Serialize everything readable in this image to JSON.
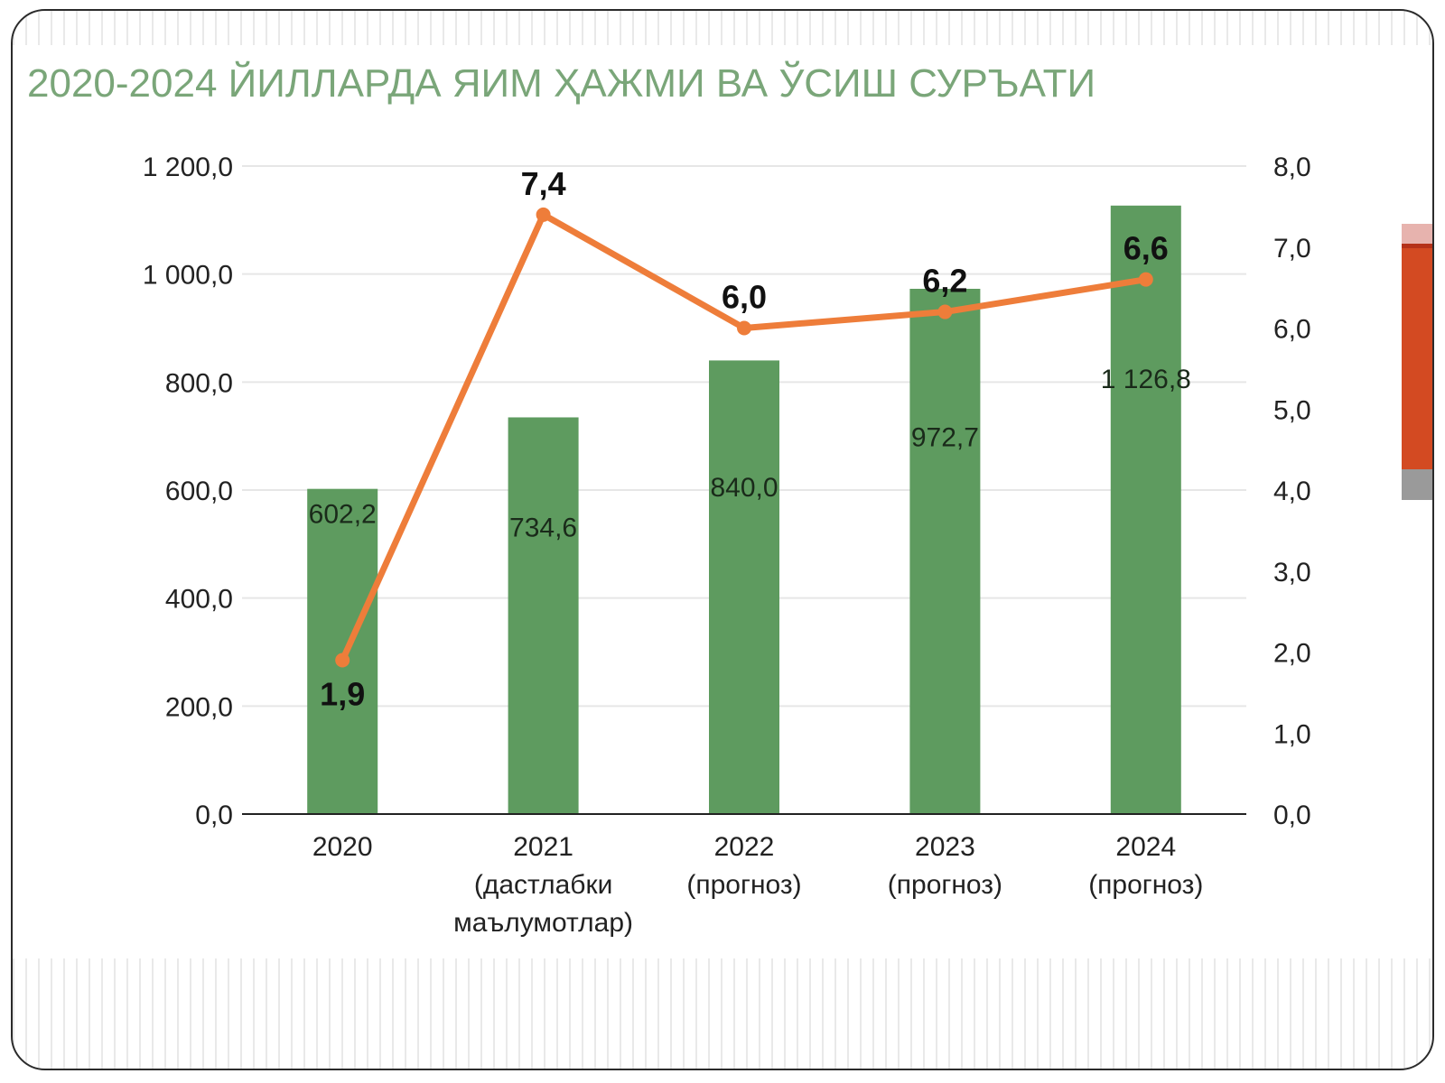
{
  "slide": {
    "title": "2020-2024 ЙИЛЛАРДА ЯИМ ҲАЖМИ ВА ЎСИШ СУРЪАТИ"
  },
  "colors": {
    "title": "#7aa679",
    "bar": "#5e9b5f",
    "line": "#ee7d3a",
    "accent": "#d34a22"
  },
  "chart_data": {
    "type": "bar",
    "title": "2020-2024 ЙИЛЛАРДА ЯИМ ҲАЖМИ ВА ЎСИШ СУРЪАТИ",
    "categories": [
      [
        "2020"
      ],
      [
        "2021",
        "(дастлабки",
        "маълумотлар)"
      ],
      [
        "2022",
        "(прогноз)"
      ],
      [
        "2023",
        "(прогноз)"
      ],
      [
        "2024",
        "(прогноз)"
      ]
    ],
    "series": [
      {
        "type": "bar",
        "axis": "left",
        "values": [
          602.2,
          734.6,
          840.0,
          972.7,
          1126.8
        ],
        "labels": [
          "602,2",
          "734,6",
          "840,0",
          "972,7",
          "1 126,8"
        ]
      },
      {
        "type": "line",
        "axis": "right",
        "values": [
          1.9,
          7.4,
          6.0,
          6.2,
          6.6
        ],
        "labels": [
          "1,9",
          "7,4",
          "6,0",
          "6,2",
          "6,6"
        ]
      }
    ],
    "y_left": {
      "min": 0,
      "max": 1200,
      "ticks": [
        "0,0",
        "200,0",
        "400,0",
        "600,0",
        "800,0",
        "1 000,0",
        "1 200,0"
      ]
    },
    "y_right": {
      "min": 0,
      "max": 8,
      "ticks": [
        "0,0",
        "1,0",
        "2,0",
        "3,0",
        "4,0",
        "5,0",
        "6,0",
        "7,0",
        "8,0"
      ]
    },
    "grid": true,
    "legend": "none"
  }
}
